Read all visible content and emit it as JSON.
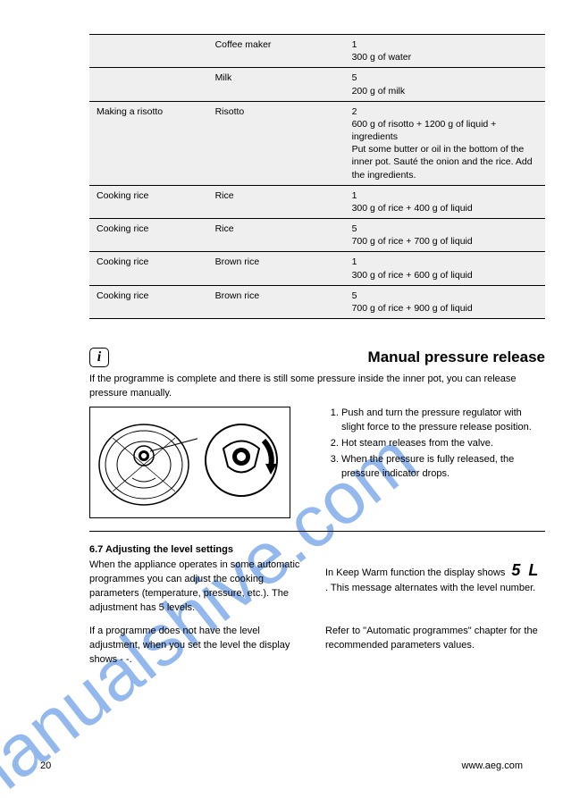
{
  "watermark": "manualshive.com",
  "table": {
    "rows": [
      {
        "c1": "",
        "c2": "Coffee maker",
        "c3": "1<br>300 g of water"
      },
      {
        "c1": "",
        "c2": "Milk",
        "c3": "5<br>200 g of milk"
      },
      {
        "c1": "Making a risotto",
        "c2": "Risotto",
        "c3": "2<br>600 g of risotto + 1200 g of liquid + ingredients<br>Put some butter or oil in the bottom of the inner pot. Sauté the onion and the rice. Add the ingredients."
      },
      {
        "c1": "Cooking rice",
        "c2": "Rice",
        "c3": "1<br>300 g of rice + 400 g of liquid"
      },
      {
        "c1": "Cooking rice",
        "c2": "Rice",
        "c3": "5<br>700 g of rice + 700 g of liquid"
      },
      {
        "c1": "Cooking rice",
        "c2": "Brown rice",
        "c3": "1<br>300 g of rice + 600 g of liquid"
      },
      {
        "c1": "Cooking rice",
        "c2": "Brown rice",
        "c3": "5<br>700 g of rice + 900 g of liquid"
      }
    ]
  },
  "section1": {
    "heading": "Manual pressure release",
    "intro": "If the programme is complete and there is still some pressure inside the inner pot, you can release pressure manually.",
    "steps": [
      "Push and turn the pressure regulator with slight force to the pressure release position.",
      "Hot steam releases from the valve.",
      "When the pressure is fully released, the pressure indicator drops."
    ]
  },
  "section2": {
    "title": "6.7 Adjusting the level settings",
    "left": "When the appliance operates in some automatic programmes you can adjust the cooking parameters (temperature, pressure, etc.). The adjustment has 5 levels.",
    "rightPrefix": "In Keep Warm function the display shows ",
    "glyph": "5 L",
    "rightSuffix": ". This message alternates with the level number.",
    "leftB": "If a programme does not have the level adjustment, when you set the level the display shows - -.",
    "rightB": "Refer to \"Automatic programmes\" chapter for the recommended parameters values."
  },
  "footer": {
    "page": "20",
    "site": "www.aeg.com"
  },
  "colors": {
    "watermark": "#3a7fe0",
    "tableBg": "#efefef"
  }
}
